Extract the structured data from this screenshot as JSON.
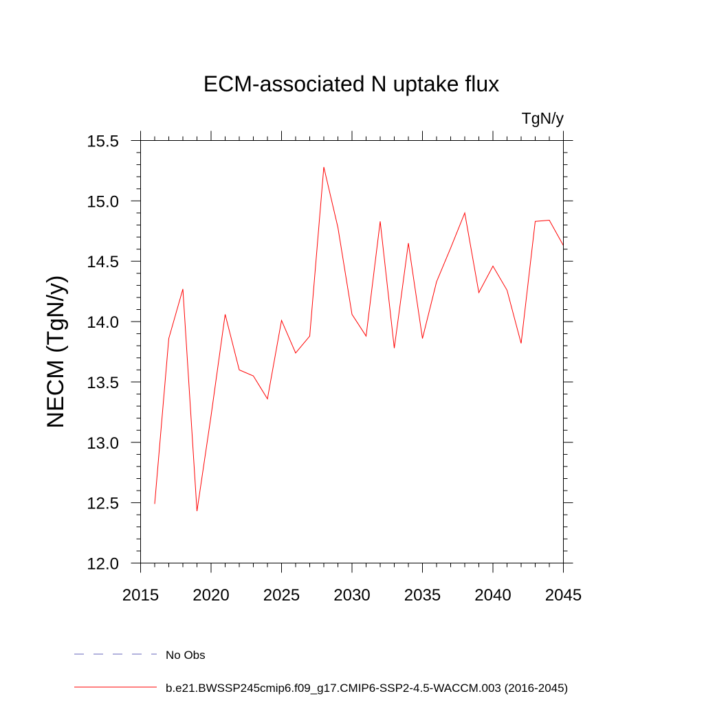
{
  "chart_data": {
    "type": "line",
    "title": "ECM-associated N uptake flux",
    "units_label": "TgN/y",
    "ylabel": "NECM  (TgN/y)",
    "xlabel": "",
    "xlim": [
      2015,
      2045
    ],
    "ylim": [
      12.0,
      15.5
    ],
    "x_ticks": [
      2015,
      2020,
      2025,
      2030,
      2035,
      2040,
      2045
    ],
    "y_ticks": [
      12.0,
      12.5,
      13.0,
      13.5,
      14.0,
      14.5,
      15.0,
      15.5
    ],
    "x_tick_labels": [
      "2015",
      "2020",
      "2025",
      "2030",
      "2035",
      "2040",
      "2045"
    ],
    "y_tick_labels": [
      "12.0",
      "12.5",
      "13.0",
      "13.5",
      "14.0",
      "14.5",
      "15.0",
      "15.5"
    ],
    "grid": false,
    "series": [
      {
        "name": "b.e21.BWSSP245cmip6.f09_g17.CMIP6-SSP2-4.5-WACCM.003 (2016-2045)",
        "color": "#ff0000",
        "x": [
          2016,
          2017,
          2018,
          2019,
          2020,
          2021,
          2022,
          2023,
          2024,
          2025,
          2026,
          2027,
          2028,
          2029,
          2030,
          2031,
          2032,
          2033,
          2034,
          2035,
          2036,
          2037,
          2038,
          2039,
          2040,
          2041,
          2042,
          2043,
          2044,
          2045
        ],
        "y": [
          12.49,
          13.86,
          14.27,
          12.43,
          13.22,
          14.06,
          13.6,
          13.55,
          13.36,
          14.01,
          13.74,
          13.88,
          15.28,
          14.78,
          14.06,
          13.88,
          14.83,
          13.78,
          14.65,
          13.86,
          14.33,
          14.61,
          14.9,
          14.24,
          14.46,
          14.26,
          13.82,
          14.83,
          14.84,
          14.63
        ]
      }
    ],
    "legend": {
      "placement": "bottom",
      "entries": [
        {
          "label": "No Obs",
          "color": "#6666bb",
          "style": "dashed"
        },
        {
          "label": "b.e21.BWSSP245cmip6.f09_g17.CMIP6-SSP2-4.5-WACCM.003 (2016-2045)",
          "color": "#ff0000",
          "style": "solid"
        }
      ]
    }
  }
}
